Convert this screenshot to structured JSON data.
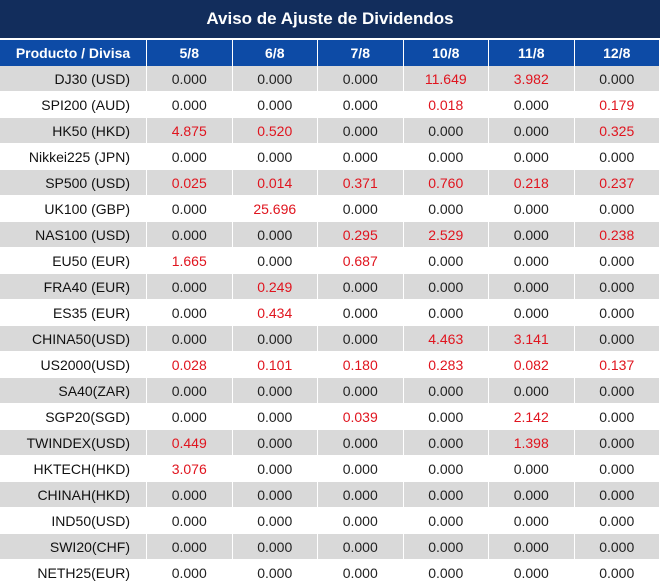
{
  "title": "Aviso de Ajuste de Dividendos",
  "headers": [
    "Producto / Divisa",
    "5/8",
    "6/8",
    "7/8",
    "10/8",
    "11/8",
    "12/8"
  ],
  "colors": {
    "title_bg": "#122d5c",
    "header_bg": "#0d4ba6",
    "highlight": "#e0141e",
    "stripe": "#d9d9d9"
  },
  "rows": [
    {
      "product": "DJ30 (USD)",
      "values": [
        "0.000",
        "0.000",
        "0.000",
        "11.649",
        "3.982",
        "0.000"
      ]
    },
    {
      "product": "SPI200 (AUD)",
      "values": [
        "0.000",
        "0.000",
        "0.000",
        "0.018",
        "0.000",
        "0.179"
      ]
    },
    {
      "product": "HK50 (HKD)",
      "values": [
        "4.875",
        "0.520",
        "0.000",
        "0.000",
        "0.000",
        "0.325"
      ]
    },
    {
      "product": "Nikkei225 (JPN)",
      "values": [
        "0.000",
        "0.000",
        "0.000",
        "0.000",
        "0.000",
        "0.000"
      ]
    },
    {
      "product": "SP500 (USD)",
      "values": [
        "0.025",
        "0.014",
        "0.371",
        "0.760",
        "0.218",
        "0.237"
      ]
    },
    {
      "product": "UK100 (GBP)",
      "values": [
        "0.000",
        "25.696",
        "0.000",
        "0.000",
        "0.000",
        "0.000"
      ]
    },
    {
      "product": "NAS100 (USD)",
      "values": [
        "0.000",
        "0.000",
        "0.295",
        "2.529",
        "0.000",
        "0.238"
      ]
    },
    {
      "product": "EU50 (EUR)",
      "values": [
        "1.665",
        "0.000",
        "0.687",
        "0.000",
        "0.000",
        "0.000"
      ]
    },
    {
      "product": "FRA40 (EUR)",
      "values": [
        "0.000",
        "0.249",
        "0.000",
        "0.000",
        "0.000",
        "0.000"
      ]
    },
    {
      "product": "ES35 (EUR)",
      "values": [
        "0.000",
        "0.434",
        "0.000",
        "0.000",
        "0.000",
        "0.000"
      ]
    },
    {
      "product": "CHINA50(USD)",
      "values": [
        "0.000",
        "0.000",
        "0.000",
        "4.463",
        "3.141",
        "0.000"
      ]
    },
    {
      "product": "US2000(USD)",
      "values": [
        "0.028",
        "0.101",
        "0.180",
        "0.283",
        "0.082",
        "0.137"
      ]
    },
    {
      "product": "SA40(ZAR)",
      "values": [
        "0.000",
        "0.000",
        "0.000",
        "0.000",
        "0.000",
        "0.000"
      ]
    },
    {
      "product": "SGP20(SGD)",
      "values": [
        "0.000",
        "0.000",
        "0.039",
        "0.000",
        "2.142",
        "0.000"
      ]
    },
    {
      "product": "TWINDEX(USD)",
      "values": [
        "0.449",
        "0.000",
        "0.000",
        "0.000",
        "1.398",
        "0.000"
      ]
    },
    {
      "product": "HKTECH(HKD)",
      "values": [
        "3.076",
        "0.000",
        "0.000",
        "0.000",
        "0.000",
        "0.000"
      ]
    },
    {
      "product": "CHINAH(HKD)",
      "values": [
        "0.000",
        "0.000",
        "0.000",
        "0.000",
        "0.000",
        "0.000"
      ]
    },
    {
      "product": "IND50(USD)",
      "values": [
        "0.000",
        "0.000",
        "0.000",
        "0.000",
        "0.000",
        "0.000"
      ]
    },
    {
      "product": "SWI20(CHF)",
      "values": [
        "0.000",
        "0.000",
        "0.000",
        "0.000",
        "0.000",
        "0.000"
      ]
    },
    {
      "product": "NETH25(EUR)",
      "values": [
        "0.000",
        "0.000",
        "0.000",
        "0.000",
        "0.000",
        "0.000"
      ]
    }
  ]
}
